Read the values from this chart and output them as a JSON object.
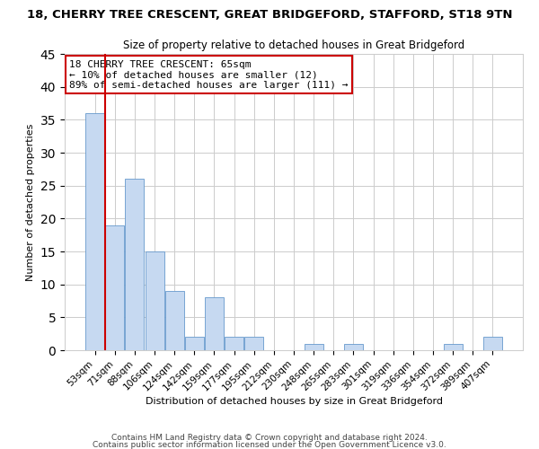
{
  "title": "18, CHERRY TREE CRESCENT, GREAT BRIDGEFORD, STAFFORD, ST18 9TN",
  "subtitle": "Size of property relative to detached houses in Great Bridgeford",
  "bar_labels": [
    "53sqm",
    "71sqm",
    "88sqm",
    "106sqm",
    "124sqm",
    "142sqm",
    "159sqm",
    "177sqm",
    "195sqm",
    "212sqm",
    "230sqm",
    "248sqm",
    "265sqm",
    "283sqm",
    "301sqm",
    "319sqm",
    "336sqm",
    "354sqm",
    "372sqm",
    "389sqm",
    "407sqm"
  ],
  "bar_values": [
    36,
    19,
    26,
    15,
    9,
    2,
    8,
    2,
    2,
    0,
    0,
    1,
    0,
    1,
    0,
    0,
    0,
    0,
    1,
    0,
    2
  ],
  "bar_color": "#c6d9f1",
  "bar_edge_color": "#6699cc",
  "highlight_color": "#cc0000",
  "xlabel": "Distribution of detached houses by size in Great Bridgeford",
  "ylabel": "Number of detached properties",
  "ylim": [
    0,
    45
  ],
  "yticks": [
    0,
    5,
    10,
    15,
    20,
    25,
    30,
    35,
    40,
    45
  ],
  "annotation_title": "18 CHERRY TREE CRESCENT: 65sqm",
  "annotation_line1": "← 10% of detached houses are smaller (12)",
  "annotation_line2": "89% of semi-detached houses are larger (111) →",
  "footer1": "Contains HM Land Registry data © Crown copyright and database right 2024.",
  "footer2": "Contains public sector information licensed under the Open Government Licence v3.0.",
  "background_color": "#ffffff",
  "grid_color": "#cccccc",
  "title_fontsize": 9.5,
  "subtitle_fontsize": 8.5,
  "axis_label_fontsize": 8,
  "tick_fontsize": 7.5,
  "annotation_fontsize": 8,
  "footer_fontsize": 6.5
}
